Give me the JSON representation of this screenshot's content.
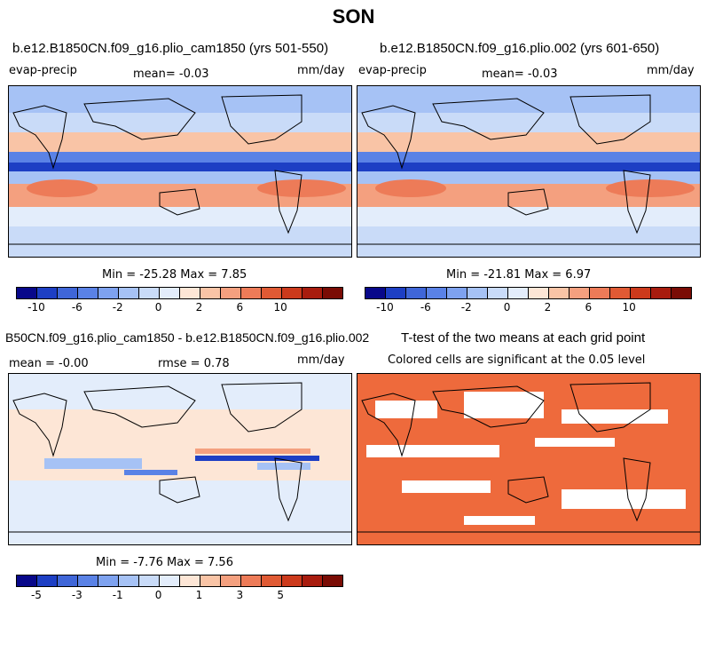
{
  "title": "SON",
  "panels": [
    {
      "title": "b.e12.B1850CN.f09_g16.plio_cam1850 (yrs 501-550)",
      "left_label": "evap-precip",
      "center_label": "mean=  -0.03",
      "right_label": "mm/day",
      "minmax": "Min = -25.28 Max =   7.85"
    },
    {
      "title": "b.e12.B1850CN.f09_g16.plio.002 (yrs 601-650)",
      "left_label": "evap-precip",
      "center_label": "mean=  -0.03",
      "right_label": "mm/day",
      "minmax": "Min = -21.81 Max =   6.97"
    },
    {
      "title": "B50CN.f09_g16.plio_cam1850 - b.e12.B1850CN.f09_g16.plio.002",
      "mean_label": "mean =  -0.00",
      "rmse_label": "rmse =   0.78",
      "right_label": "mm/day",
      "minmax": "Min =  -7.76 Max =   7.56"
    },
    {
      "title": "T-test of the two means at each grid point",
      "sub_label": "Colored cells are significant at the 0.05 level"
    }
  ],
  "colorbar_main": {
    "ticks": [
      "-10",
      "-6",
      "-2",
      "0",
      "2",
      "6",
      "10"
    ],
    "colors": [
      "#08088a",
      "#1d3fc4",
      "#3f66d8",
      "#5a82e6",
      "#7ea2ef",
      "#a6c2f5",
      "#c9dbf8",
      "#e3edfb",
      "#fde6d6",
      "#f9c4a6",
      "#f4a07f",
      "#ed7b58",
      "#e05a34",
      "#cc3a1c",
      "#a81c0e",
      "#7a0c05"
    ]
  },
  "colorbar_diff": {
    "ticks": [
      "-5",
      "-3",
      "-1",
      "0",
      "1",
      "3",
      "5"
    ],
    "colors": [
      "#08088a",
      "#1d3fc4",
      "#3f66d8",
      "#5a82e6",
      "#7ea2ef",
      "#a6c2f5",
      "#c9dbf8",
      "#e3edfb",
      "#fde6d6",
      "#f9c4a6",
      "#f4a07f",
      "#ed7b58",
      "#e05a34",
      "#cc3a1c",
      "#a81c0e",
      "#7a0c05"
    ]
  },
  "colors": {
    "ocean_neutral": "#c9dbf8",
    "diff_background": "#fde6d6",
    "significant": "#ee6a3c"
  }
}
